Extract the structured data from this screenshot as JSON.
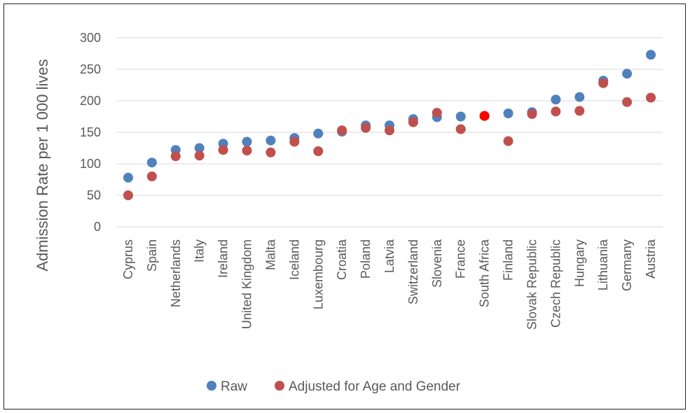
{
  "chart_data": {
    "type": "scatter",
    "title": "",
    "xlabel": "",
    "ylabel": "Admission Rate per 1 000 lives",
    "ylim": [
      0,
      300
    ],
    "yticks": [
      0,
      50,
      100,
      150,
      200,
      250,
      300
    ],
    "grid": true,
    "legend_position": "bottom",
    "categories": [
      "Cyprus",
      "Spain",
      "Netherlands",
      "Italy",
      "Ireland",
      "United Kingdom",
      "Malta",
      "Iceland",
      "Luxembourg",
      "Croatia",
      "Poland",
      "Latvia",
      "Switzerland",
      "Slovenia",
      "France",
      "South Africa",
      "Finland",
      "Slovak Republic",
      "Czech Republic",
      "Hungary",
      "Lithuania",
      "Germany",
      "Austria"
    ],
    "series": [
      {
        "name": "Raw",
        "color": "#4f81bd",
        "values": [
          78,
          102,
          122,
          125,
          132,
          135,
          137,
          141,
          148,
          151,
          161,
          161,
          171,
          174,
          175,
          176,
          180,
          182,
          202,
          206,
          232,
          243,
          273
        ]
      },
      {
        "name": "Adjusted for Age and Gender",
        "color": "#c0504d",
        "values": [
          50,
          80,
          112,
          113,
          122,
          121,
          118,
          135,
          120,
          153,
          157,
          153,
          166,
          181,
          155,
          176,
          136,
          179,
          183,
          184,
          228,
          198,
          205
        ]
      }
    ],
    "highlight": {
      "category": "South Africa",
      "color": "#ff0000"
    }
  }
}
